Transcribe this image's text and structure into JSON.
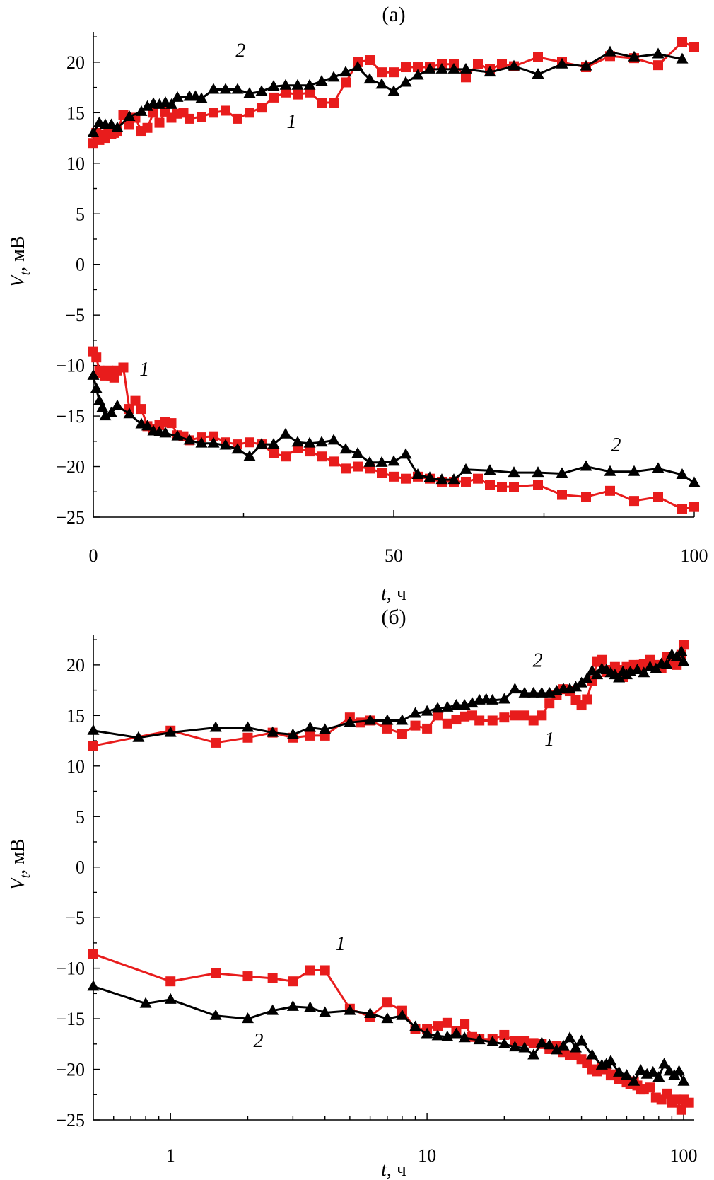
{
  "chart_data": [
    {
      "panel": "(а)",
      "type": "line",
      "title": "(а)",
      "xlabel_italic": "t",
      "xlabel_rest": ", ч",
      "ylabel_main": "V",
      "ylabel_sub": "t",
      "ylabel_rest": ", мВ",
      "xscale": "linear",
      "xlim": [
        0,
        100
      ],
      "ylim": [
        -25,
        23
      ],
      "xticks": [
        0,
        50,
        100
      ],
      "xtick_labels": [
        "0",
        "50",
        "100"
      ],
      "yticks": [
        -25,
        -20,
        -15,
        -10,
        -5,
        0,
        5,
        10,
        15,
        20
      ],
      "ytick_labels": [
        "−25",
        "−20",
        "−15",
        "−10",
        "−5",
        "0",
        "5",
        "10",
        "15",
        "20"
      ],
      "series": [
        {
          "name": "1 (positive)",
          "label": "1",
          "color": "#e81c1c",
          "marker": "square",
          "x": [
            0,
            0.5,
            1,
            1.5,
            2,
            2.5,
            3,
            3.5,
            4,
            5,
            6,
            7,
            8,
            9,
            10,
            11,
            12,
            13,
            14,
            15,
            16,
            18,
            20,
            22,
            24,
            26,
            28,
            30,
            32,
            34,
            36,
            38,
            40,
            42,
            44,
            46,
            48,
            50,
            52,
            54,
            56,
            58,
            60,
            62,
            64,
            66,
            68,
            70,
            74,
            78,
            82,
            86,
            90,
            94,
            98,
            100
          ],
          "y": [
            12,
            13,
            12.3,
            12.8,
            12.5,
            13.3,
            12.9,
            13,
            13.2,
            14.8,
            13.8,
            14.5,
            13.2,
            13.5,
            15,
            14,
            15.1,
            14.5,
            14.9,
            15,
            14.4,
            14.6,
            15,
            15.2,
            14.4,
            15,
            15.5,
            16.5,
            17,
            16.8,
            17,
            16,
            16,
            18,
            20,
            20.2,
            19,
            19,
            19.5,
            19.5,
            19.5,
            19.8,
            19.8,
            18.5,
            19.8,
            19.3,
            19.8,
            19.6,
            20.5,
            20,
            19.5,
            20.6,
            20.4,
            19.7,
            22,
            21.5
          ]
        },
        {
          "name": "2 (positive)",
          "label": "2",
          "color": "#000000",
          "marker": "triangle",
          "x": [
            0,
            1,
            2,
            3,
            4,
            6,
            8,
            9,
            10,
            11,
            12,
            13,
            14,
            16,
            17,
            18,
            20,
            22,
            24,
            26,
            28,
            30,
            32,
            34,
            36,
            38,
            40,
            42,
            44,
            46,
            48,
            50,
            52,
            54,
            56,
            58,
            60,
            62,
            66,
            70,
            74,
            78,
            82,
            86,
            90,
            94,
            98
          ],
          "y": [
            13,
            14,
            13.8,
            13.8,
            13.5,
            14.6,
            15.1,
            15.6,
            15.9,
            15.8,
            16,
            15.8,
            16.5,
            16.6,
            16.6,
            16.4,
            17.3,
            17.3,
            17.3,
            16.9,
            17.1,
            17.6,
            17.7,
            17.7,
            17.7,
            18.1,
            18.5,
            19,
            19.5,
            18.3,
            17.8,
            17.1,
            18,
            18.7,
            19.3,
            19.3,
            19.3,
            19.3,
            19,
            19.6,
            18.8,
            19.8,
            19.6,
            21,
            20.5,
            20.8,
            20.3
          ]
        },
        {
          "name": "1 (negative)",
          "label": "1",
          "color": "#e81c1c",
          "marker": "square",
          "x": [
            0,
            0.5,
            1,
            1.5,
            2,
            2.5,
            3,
            3.5,
            4,
            5,
            6,
            7,
            8,
            9,
            10,
            11,
            12,
            13,
            14,
            15,
            16,
            18,
            20,
            22,
            24,
            26,
            28,
            30,
            32,
            34,
            36,
            38,
            40,
            42,
            44,
            46,
            48,
            50,
            52,
            54,
            56,
            58,
            60,
            62,
            64,
            66,
            68,
            70,
            74,
            78,
            82,
            86,
            90,
            94,
            98,
            100
          ],
          "y": [
            -8.6,
            -9.2,
            -10.5,
            -10.8,
            -11,
            -10.5,
            -11,
            -11.2,
            -10.5,
            -10.2,
            -14.3,
            -13.5,
            -14.3,
            -16,
            -16.3,
            -15.9,
            -15.6,
            -15.7,
            -16.9,
            -17,
            -17.4,
            -17.1,
            -17,
            -17.6,
            -17.8,
            -17.6,
            -17.8,
            -18.7,
            -19,
            -18.2,
            -18.5,
            -19,
            -19.5,
            -20.2,
            -20,
            -20.2,
            -20.6,
            -21,
            -21.2,
            -21,
            -21.2,
            -21.5,
            -21.5,
            -21.5,
            -21.2,
            -21.8,
            -22,
            -22,
            -21.8,
            -22.8,
            -23,
            -22.4,
            -23.4,
            -23,
            -24.2,
            -24
          ]
        },
        {
          "name": "2 (negative)",
          "label": "2",
          "color": "#000000",
          "marker": "triangle",
          "x": [
            0,
            0.5,
            1,
            1.5,
            2,
            3,
            4,
            6,
            8,
            9,
            10,
            11,
            12,
            14,
            16,
            18,
            20,
            22,
            24,
            26,
            28,
            30,
            32,
            34,
            36,
            38,
            40,
            42,
            44,
            46,
            48,
            50,
            52,
            54,
            56,
            58,
            60,
            62,
            66,
            70,
            74,
            78,
            82,
            86,
            90,
            94,
            98,
            100
          ],
          "y": [
            -11,
            -12.3,
            -13.5,
            -14.2,
            -15,
            -14.7,
            -14,
            -14.8,
            -15.8,
            -16,
            -16.5,
            -16.6,
            -16.7,
            -17,
            -17.4,
            -17.7,
            -17.7,
            -17.9,
            -18.3,
            -19,
            -17.8,
            -17.8,
            -16.8,
            -17.6,
            -17.7,
            -17.6,
            -17.4,
            -18.3,
            -18.7,
            -19.6,
            -19.6,
            -19.5,
            -18.8,
            -20.8,
            -21.1,
            -21.3,
            -21.3,
            -20.3,
            -20.4,
            -20.6,
            -20.6,
            -20.7,
            -20,
            -20.5,
            -20.5,
            -20.2,
            -20.8,
            -21.6
          ]
        }
      ],
      "labels": [
        {
          "text": "2",
          "x": 24.5,
          "y": 20.5
        },
        {
          "text": "1",
          "x": 33,
          "y": 13.5
        },
        {
          "text": "1",
          "x": 8.5,
          "y": -11
        },
        {
          "text": "2",
          "x": 87,
          "y": -18.5
        }
      ]
    },
    {
      "panel": "(б)",
      "type": "line",
      "title": "(б)",
      "xlabel_italic": "t",
      "xlabel_rest": ", ч",
      "ylabel_main": "V",
      "ylabel_sub": "t",
      "ylabel_rest": ", мВ",
      "xscale": "log",
      "xlim": [
        0.5,
        110
      ],
      "ylim": [
        -25,
        23
      ],
      "xticks": [
        1,
        10,
        100
      ],
      "xtick_labels": [
        "1",
        "10",
        "100"
      ],
      "xminor": [
        0.6,
        0.7,
        0.8,
        0.9,
        2,
        3,
        4,
        5,
        6,
        7,
        8,
        9,
        20,
        30,
        40,
        50,
        60,
        70,
        80,
        90
      ],
      "yticks": [
        -25,
        -20,
        -15,
        -10,
        -5,
        0,
        5,
        10,
        15,
        20
      ],
      "ytick_labels": [
        "−25",
        "−20",
        "−15",
        "−10",
        "−5",
        "0",
        "5",
        "10",
        "15",
        "20"
      ],
      "series": [
        {
          "name": "1 (positive)",
          "label": "1",
          "color": "#e81c1c",
          "marker": "square",
          "x": [
            0.5,
            1,
            1.5,
            2,
            2.5,
            3,
            3.5,
            4,
            5,
            5.5,
            6,
            7,
            8,
            9,
            10,
            11,
            12,
            13,
            14,
            15,
            16,
            18,
            20,
            22,
            24,
            26,
            28,
            30,
            32,
            34,
            36,
            38,
            40,
            42,
            44,
            46,
            48,
            50,
            52,
            54,
            56,
            58,
            60,
            62,
            64,
            66,
            68,
            70,
            74,
            78,
            82,
            86,
            90,
            94,
            98,
            100
          ],
          "y": [
            12,
            13.5,
            12.3,
            12.8,
            13.3,
            12.8,
            13,
            13,
            14.8,
            14.3,
            14.5,
            13.7,
            13.2,
            14,
            13.7,
            15,
            14.2,
            14.6,
            14.9,
            15,
            14.5,
            14.5,
            14.8,
            15,
            15,
            14.5,
            15,
            16.2,
            17,
            17.6,
            17.4,
            16.5,
            16,
            16.6,
            18.4,
            20.3,
            20.5,
            19.3,
            19.5,
            19.8,
            19.5,
            18.8,
            19.8,
            19.6,
            20,
            19.8,
            20,
            20.1,
            20.5,
            20,
            19.7,
            20.8,
            20.4,
            20,
            21,
            22
          ]
        },
        {
          "name": "2 (positive)",
          "label": "2",
          "color": "#000000",
          "marker": "triangle",
          "x": [
            0.5,
            0.75,
            1,
            1.5,
            2,
            2.5,
            3,
            3.5,
            4,
            5,
            6,
            7,
            8,
            9,
            10,
            11,
            12,
            13,
            14,
            15,
            16,
            17,
            18,
            20,
            22,
            24,
            26,
            28,
            30,
            32,
            34,
            36,
            38,
            40,
            42,
            44,
            46,
            48,
            50,
            52,
            54,
            56,
            58,
            60,
            62,
            66,
            70,
            74,
            78,
            82,
            86,
            90,
            94,
            98,
            100
          ],
          "y": [
            13.5,
            12.8,
            13.3,
            13.8,
            13.8,
            13.3,
            13.1,
            13.8,
            13.6,
            14.3,
            14.5,
            14.5,
            14.5,
            15.2,
            15.4,
            15.7,
            15.8,
            16,
            16,
            16.2,
            16.5,
            16.6,
            16.5,
            16.6,
            17.6,
            17.2,
            17.2,
            17.2,
            17.2,
            17.4,
            17.6,
            17.6,
            17.8,
            18.2,
            18.6,
            19.4,
            19,
            19.6,
            19.5,
            19.2,
            19,
            18.7,
            19.3,
            19,
            19.3,
            19.5,
            19.2,
            19.8,
            19.6,
            20.1,
            20,
            21,
            20.8,
            21.3,
            20.3
          ]
        },
        {
          "name": "1 (negative)",
          "label": "1",
          "color": "#e81c1c",
          "marker": "square",
          "x": [
            0.5,
            1,
            1.5,
            2,
            2.5,
            3,
            3.5,
            4,
            5,
            6,
            7,
            8,
            9,
            10,
            11,
            12,
            13,
            14,
            15,
            16,
            18,
            20,
            22,
            24,
            26,
            28,
            30,
            32,
            34,
            36,
            38,
            40,
            42,
            44,
            46,
            48,
            50,
            52,
            54,
            56,
            58,
            60,
            62,
            64,
            66,
            68,
            70,
            74,
            78,
            82,
            86,
            90,
            94,
            98,
            100,
            105
          ],
          "y": [
            -8.6,
            -11.3,
            -10.5,
            -10.8,
            -11,
            -11.3,
            -10.2,
            -10.2,
            -14,
            -14.8,
            -13.4,
            -14.2,
            -16,
            -16,
            -15.7,
            -15.4,
            -16.2,
            -15.5,
            -16.8,
            -17,
            -17,
            -16.6,
            -17.2,
            -17.2,
            -17.4,
            -17.5,
            -18,
            -17.7,
            -18.3,
            -18.6,
            -18.6,
            -19,
            -19.4,
            -20,
            -20.2,
            -19.8,
            -20,
            -20.6,
            -20.5,
            -21,
            -21,
            -21.3,
            -21.5,
            -21.2,
            -21.6,
            -22,
            -22,
            -21.8,
            -22.8,
            -23,
            -22.4,
            -23.3,
            -23,
            -24,
            -23,
            -23.3
          ]
        },
        {
          "name": "2 (negative)",
          "label": "2",
          "color": "#000000",
          "marker": "triangle",
          "x": [
            0.5,
            0.8,
            1,
            1.5,
            2,
            2.5,
            3,
            3.5,
            4,
            5,
            6,
            7,
            8,
            9,
            10,
            11,
            12,
            13,
            14,
            16,
            18,
            20,
            22,
            24,
            26,
            28,
            30,
            32,
            34,
            36,
            38,
            40,
            44,
            48,
            50,
            52,
            56,
            60,
            64,
            68,
            72,
            76,
            80,
            84,
            88,
            92,
            96,
            100
          ],
          "y": [
            -11.8,
            -13.5,
            -13.1,
            -14.7,
            -15,
            -14.2,
            -13.8,
            -13.9,
            -14.4,
            -14.2,
            -14.5,
            -15,
            -14.7,
            -15.8,
            -16.5,
            -16.7,
            -16.8,
            -16.5,
            -16.9,
            -17.1,
            -17.3,
            -17.5,
            -17.8,
            -17.9,
            -18.6,
            -17.4,
            -17.6,
            -18.1,
            -17.7,
            -16.9,
            -17.9,
            -17.2,
            -18.6,
            -19.6,
            -19.5,
            -19.2,
            -20.3,
            -20.6,
            -21.2,
            -20.1,
            -20.5,
            -20.3,
            -20.8,
            -19.5,
            -20.2,
            -20.6,
            -20.2,
            -21.2
          ]
        }
      ],
      "labels": [
        {
          "text": "2",
          "x": 27,
          "y": 19.8
        },
        {
          "text": "1",
          "x": 30,
          "y": 12
        },
        {
          "text": "1",
          "x": 4.6,
          "y": -8.2
        },
        {
          "text": "2",
          "x": 2.2,
          "y": -17.8
        }
      ]
    }
  ]
}
